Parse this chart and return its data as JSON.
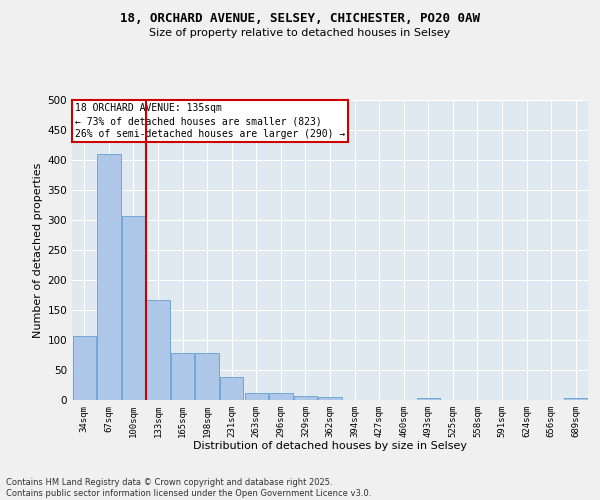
{
  "title_line1": "18, ORCHARD AVENUE, SELSEY, CHICHESTER, PO20 0AW",
  "title_line2": "Size of property relative to detached houses in Selsey",
  "xlabel": "Distribution of detached houses by size in Selsey",
  "ylabel": "Number of detached properties",
  "categories": [
    "34sqm",
    "67sqm",
    "100sqm",
    "133sqm",
    "165sqm",
    "198sqm",
    "231sqm",
    "263sqm",
    "296sqm",
    "329sqm",
    "362sqm",
    "394sqm",
    "427sqm",
    "460sqm",
    "493sqm",
    "525sqm",
    "558sqm",
    "591sqm",
    "624sqm",
    "656sqm",
    "689sqm"
  ],
  "values": [
    107,
    410,
    307,
    167,
    78,
    78,
    38,
    12,
    11,
    7,
    5,
    0,
    0,
    0,
    3,
    0,
    0,
    0,
    0,
    0,
    3
  ],
  "bar_color": "#aec6e8",
  "bar_edge_color": "#6fa8d6",
  "vline_color": "#cc0000",
  "annotation_text": "18 ORCHARD AVENUE: 135sqm\n← 73% of detached houses are smaller (823)\n26% of semi-detached houses are larger (290) →",
  "annotation_box_color": "#ffffff",
  "annotation_box_edge": "#cc0000",
  "ylim": [
    0,
    500
  ],
  "yticks": [
    0,
    50,
    100,
    150,
    200,
    250,
    300,
    350,
    400,
    450,
    500
  ],
  "background_color": "#e0e8f0",
  "grid_color": "#ffffff",
  "fig_background": "#f0f0f0",
  "footer_line1": "Contains HM Land Registry data © Crown copyright and database right 2025.",
  "footer_line2": "Contains public sector information licensed under the Open Government Licence v3.0."
}
